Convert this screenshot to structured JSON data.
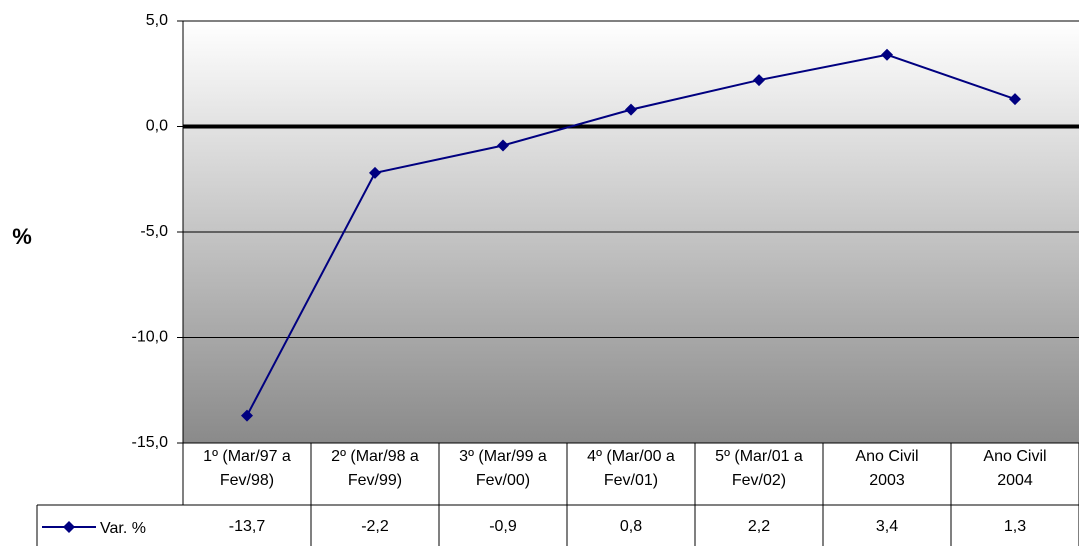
{
  "chart_data": {
    "type": "line",
    "y_label": "%",
    "categories": [
      "1º (Mar/97 a\nFev/98)",
      "2º (Mar/98 a\nFev/99)",
      "3º (Mar/99 a\nFev/00)",
      "4º (Mar/00 a\nFev/01)",
      "5º (Mar/01 a\nFev/02)",
      "Ano Civil\n2003",
      "Ano Civil\n2004"
    ],
    "series": [
      {
        "name": "Var. %",
        "color": "#000080",
        "values": [
          -13.7,
          -2.2,
          -0.9,
          0.8,
          2.2,
          3.4,
          1.3
        ],
        "value_labels": [
          "-13,7",
          "-2,2",
          "-0,9",
          "0,8",
          "2,2",
          "3,4",
          "1,3"
        ]
      }
    ],
    "ylim": [
      -15,
      5
    ],
    "yticks": [
      {
        "value": -15,
        "label": "-15,0"
      },
      {
        "value": -10,
        "label": "-10,0"
      },
      {
        "value": -5,
        "label": "-5,0"
      },
      {
        "value": 0,
        "label": "0,0"
      },
      {
        "value": 5,
        "label": "5,0"
      }
    ],
    "grid": true
  }
}
